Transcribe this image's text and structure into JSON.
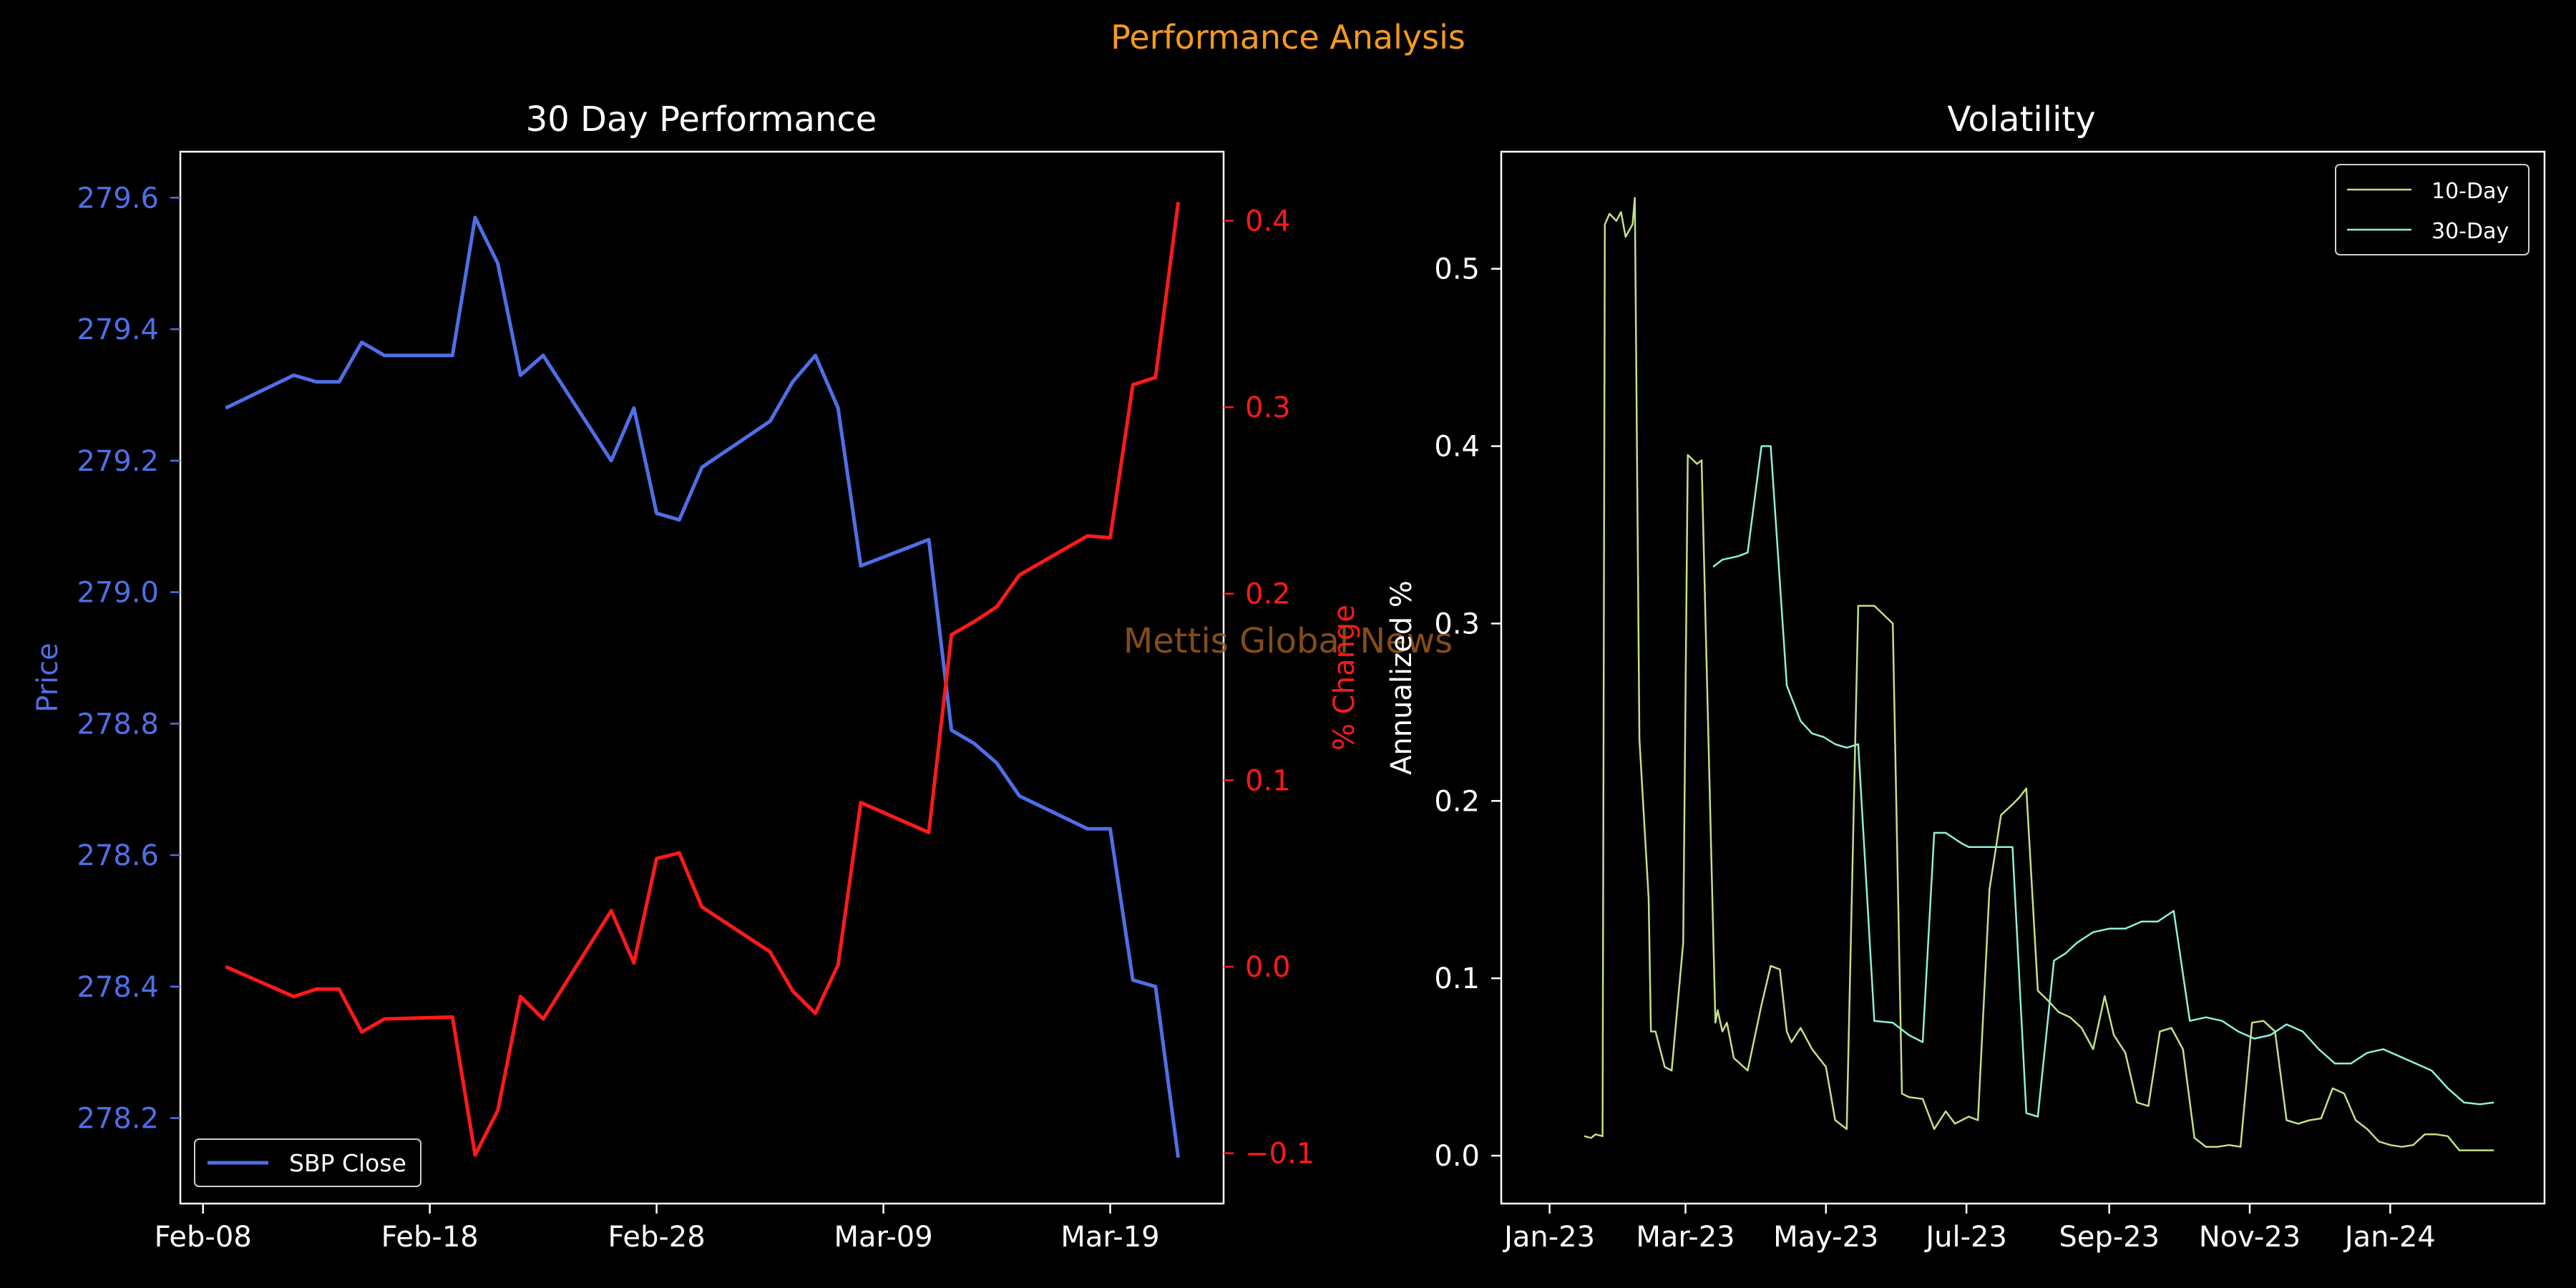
{
  "figure": {
    "suptitle": "Performance Analysis",
    "watermark": "Mettis Global News",
    "colors": {
      "background": "#000000",
      "suptitle": "#f39a1e",
      "axis": "#ffffff",
      "price": "#4f6fe6",
      "pct": "#ff1a1a",
      "vol10": "#c2e083",
      "vol30": "#8ff0dc",
      "watermark": "#9a5a1c"
    }
  },
  "chart_data": [
    {
      "type": "line",
      "title": "30 Day Performance",
      "xlabel": "",
      "ylabel": "Price",
      "ylabel_right": "% Change",
      "x_ticks": [
        "Feb-08",
        "Feb-18",
        "Feb-28",
        "Mar-09",
        "Mar-19"
      ],
      "y_ticks": [
        278.2,
        278.4,
        278.6,
        278.8,
        279.0,
        279.2,
        279.4,
        279.6
      ],
      "y_ticks_right": [
        -0.1,
        0.0,
        0.1,
        0.2,
        0.3,
        0.4
      ],
      "y_tick_labels_right": [
        "−0.1",
        "0.0",
        "0.1",
        "0.2",
        "0.3",
        "0.4"
      ],
      "x_range": [
        "2024-02-07",
        "2024-03-24"
      ],
      "ylim": [
        278.07,
        279.67
      ],
      "ylim_right": [
        -0.127,
        0.437
      ],
      "legend": {
        "location": "lower-left",
        "entries": [
          "SBP Close"
        ]
      },
      "series": [
        {
          "name": "SBP Close",
          "axis": "left",
          "x": [
            "2024-02-09",
            "2024-02-12",
            "2024-02-13",
            "2024-02-14",
            "2024-02-15",
            "2024-02-16",
            "2024-02-19",
            "2024-02-20",
            "2024-02-21",
            "2024-02-22",
            "2024-02-23",
            "2024-02-26",
            "2024-02-27",
            "2024-02-28",
            "2024-02-29",
            "2024-03-01",
            "2024-03-04",
            "2024-03-05",
            "2024-03-06",
            "2024-03-07",
            "2024-03-08",
            "2024-03-11",
            "2024-03-12",
            "2024-03-13",
            "2024-03-14",
            "2024-03-15",
            "2024-03-18",
            "2024-03-19",
            "2024-03-20",
            "2024-03-21",
            "2024-03-22"
          ],
          "values": [
            279.28,
            279.33,
            279.32,
            279.32,
            279.38,
            279.36,
            279.36,
            279.57,
            279.5,
            279.33,
            279.36,
            279.2,
            279.28,
            279.12,
            279.11,
            279.19,
            279.26,
            279.32,
            279.36,
            279.28,
            279.04,
            279.08,
            278.79,
            278.77,
            278.74,
            278.69,
            278.64,
            278.64,
            278.41,
            278.4,
            278.14
          ]
        },
        {
          "name": "",
          "axis": "right",
          "x": [
            "2024-02-09",
            "2024-02-12",
            "2024-02-13",
            "2024-02-14",
            "2024-02-15",
            "2024-02-16",
            "2024-02-19",
            "2024-02-20",
            "2024-02-21",
            "2024-02-22",
            "2024-02-23",
            "2024-02-26",
            "2024-02-27",
            "2024-02-28",
            "2024-02-29",
            "2024-03-01",
            "2024-03-04",
            "2024-03-05",
            "2024-03-06",
            "2024-03-07",
            "2024-03-08",
            "2024-03-11",
            "2024-03-12",
            "2024-03-13",
            "2024-03-14",
            "2024-03-15",
            "2024-03-18",
            "2024-03-19",
            "2024-03-20",
            "2024-03-21",
            "2024-03-22"
          ],
          "values": [
            0.0,
            -0.016,
            -0.012,
            -0.012,
            -0.035,
            -0.028,
            -0.027,
            -0.101,
            -0.077,
            -0.016,
            -0.028,
            0.03,
            0.002,
            0.058,
            0.061,
            0.032,
            0.008,
            -0.013,
            -0.025,
            0.001,
            0.088,
            0.072,
            0.178,
            0.185,
            0.193,
            0.21,
            0.231,
            0.23,
            0.312,
            0.316,
            0.41
          ]
        }
      ]
    },
    {
      "type": "line",
      "title": "Volatility",
      "xlabel": "",
      "ylabel": "Annualized %",
      "x_ticks": [
        "Jan-23",
        "Mar-23",
        "May-23",
        "Jul-23",
        "Sep-23",
        "Nov-23",
        "Jan-24"
      ],
      "y_ticks": [
        0.0,
        0.1,
        0.2,
        0.3,
        0.4,
        0.5
      ],
      "y_tick_labels": [
        "0.0",
        "0.1",
        "0.2",
        "0.3",
        "0.4",
        "0.5"
      ],
      "x_range": [
        "2022-12-11",
        "2024-03-08"
      ],
      "ylim": [
        -0.027,
        0.566
      ],
      "legend": {
        "location": "top-right",
        "entries": [
          "10-Day",
          "30-Day"
        ]
      },
      "series": [
        {
          "name": "10-Day",
          "x": [
            "2023-01-16",
            "2023-01-19",
            "2023-01-21",
            "2023-01-24",
            "2023-01-25",
            "2023-01-27",
            "2023-01-30",
            "2023-02-01",
            "2023-02-03",
            "2023-02-06",
            "2023-02-07",
            "2023-02-09",
            "2023-02-13",
            "2023-02-14",
            "2023-02-16",
            "2023-02-20",
            "2023-02-23",
            "2023-02-28",
            "2023-03-02",
            "2023-03-06",
            "2023-03-08",
            "2023-03-14",
            "2023-03-15",
            "2023-03-17",
            "2023-03-19",
            "2023-03-22",
            "2023-03-28",
            "2023-04-03",
            "2023-04-07",
            "2023-04-11",
            "2023-04-14",
            "2023-04-16",
            "2023-04-20",
            "2023-04-25",
            "2023-05-01",
            "2023-05-05",
            "2023-05-10",
            "2023-05-15",
            "2023-05-20",
            "2023-05-22",
            "2023-05-30",
            "2023-06-03",
            "2023-06-06",
            "2023-06-12",
            "2023-06-17",
            "2023-06-22",
            "2023-06-26",
            "2023-07-02",
            "2023-07-06",
            "2023-07-11",
            "2023-07-16",
            "2023-07-21",
            "2023-07-24",
            "2023-07-27",
            "2023-08-01",
            "2023-08-05",
            "2023-08-10",
            "2023-08-15",
            "2023-08-20",
            "2023-08-25",
            "2023-08-30",
            "2023-09-03",
            "2023-09-08",
            "2023-09-13",
            "2023-09-18",
            "2023-09-23",
            "2023-09-28",
            "2023-10-03",
            "2023-10-08",
            "2023-10-13",
            "2023-10-18",
            "2023-10-23",
            "2023-10-28",
            "2023-11-02",
            "2023-11-07",
            "2023-11-12",
            "2023-11-17",
            "2023-11-22",
            "2023-11-27",
            "2023-12-02",
            "2023-12-07",
            "2023-12-12",
            "2023-12-17",
            "2023-12-22",
            "2023-12-27",
            "2024-01-01",
            "2024-01-06",
            "2024-01-11",
            "2024-01-16",
            "2024-01-21",
            "2024-01-26",
            "2024-01-31",
            "2024-02-05",
            "2024-02-10",
            "2024-02-15"
          ],
          "values": [
            0.011,
            0.01,
            0.012,
            0.011,
            0.525,
            0.531,
            0.527,
            0.532,
            0.518,
            0.525,
            0.54,
            0.235,
            0.145,
            0.07,
            0.07,
            0.05,
            0.048,
            0.12,
            0.395,
            0.39,
            0.392,
            0.075,
            0.082,
            0.07,
            0.075,
            0.055,
            0.048,
            0.085,
            0.107,
            0.105,
            0.07,
            0.064,
            0.072,
            0.06,
            0.05,
            0.02,
            0.015,
            0.31,
            0.31,
            0.31,
            0.3,
            0.035,
            0.033,
            0.032,
            0.015,
            0.025,
            0.018,
            0.022,
            0.02,
            0.15,
            0.192,
            0.198,
            0.202,
            0.207,
            0.093,
            0.088,
            0.081,
            0.078,
            0.072,
            0.06,
            0.09,
            0.068,
            0.058,
            0.03,
            0.028,
            0.07,
            0.072,
            0.06,
            0.01,
            0.005,
            0.005,
            0.006,
            0.005,
            0.075,
            0.076,
            0.07,
            0.02,
            0.018,
            0.02,
            0.021,
            0.038,
            0.035,
            0.02,
            0.015,
            0.008,
            0.006,
            0.005,
            0.006,
            0.012,
            0.012,
            0.011,
            0.003,
            0.003,
            0.003,
            0.003
          ]
        },
        {
          "name": "30-Day",
          "x": [
            "2023-03-13",
            "2023-03-17",
            "2023-03-24",
            "2023-03-28",
            "2023-04-03",
            "2023-04-07",
            "2023-04-14",
            "2023-04-20",
            "2023-04-25",
            "2023-04-30",
            "2023-05-05",
            "2023-05-10",
            "2023-05-15",
            "2023-05-22",
            "2023-05-30",
            "2023-06-06",
            "2023-06-12",
            "2023-06-17",
            "2023-06-22",
            "2023-06-29",
            "2023-07-02",
            "2023-07-06",
            "2023-07-11",
            "2023-07-16",
            "2023-07-21",
            "2023-07-27",
            "2023-08-01",
            "2023-08-08",
            "2023-08-13",
            "2023-08-18",
            "2023-08-25",
            "2023-09-01",
            "2023-09-08",
            "2023-09-15",
            "2023-09-22",
            "2023-09-29",
            "2023-10-06",
            "2023-10-13",
            "2023-10-20",
            "2023-10-27",
            "2023-11-03",
            "2023-11-10",
            "2023-11-17",
            "2023-11-24",
            "2023-12-01",
            "2023-12-08",
            "2023-12-15",
            "2023-12-22",
            "2023-12-29",
            "2024-01-05",
            "2024-01-12",
            "2024-01-19",
            "2024-01-26",
            "2024-02-02",
            "2024-02-09",
            "2024-02-15"
          ],
          "values": [
            0.332,
            0.336,
            0.338,
            0.34,
            0.4,
            0.4,
            0.265,
            0.245,
            0.238,
            0.236,
            0.232,
            0.23,
            0.232,
            0.076,
            0.075,
            0.068,
            0.064,
            0.182,
            0.182,
            0.176,
            0.174,
            0.174,
            0.174,
            0.174,
            0.174,
            0.024,
            0.022,
            0.11,
            0.114,
            0.12,
            0.126,
            0.128,
            0.128,
            0.132,
            0.132,
            0.138,
            0.076,
            0.078,
            0.076,
            0.07,
            0.066,
            0.068,
            0.074,
            0.07,
            0.06,
            0.052,
            0.052,
            0.058,
            0.06,
            0.056,
            0.052,
            0.048,
            0.038,
            0.03,
            0.029,
            0.03
          ]
        }
      ]
    }
  ]
}
